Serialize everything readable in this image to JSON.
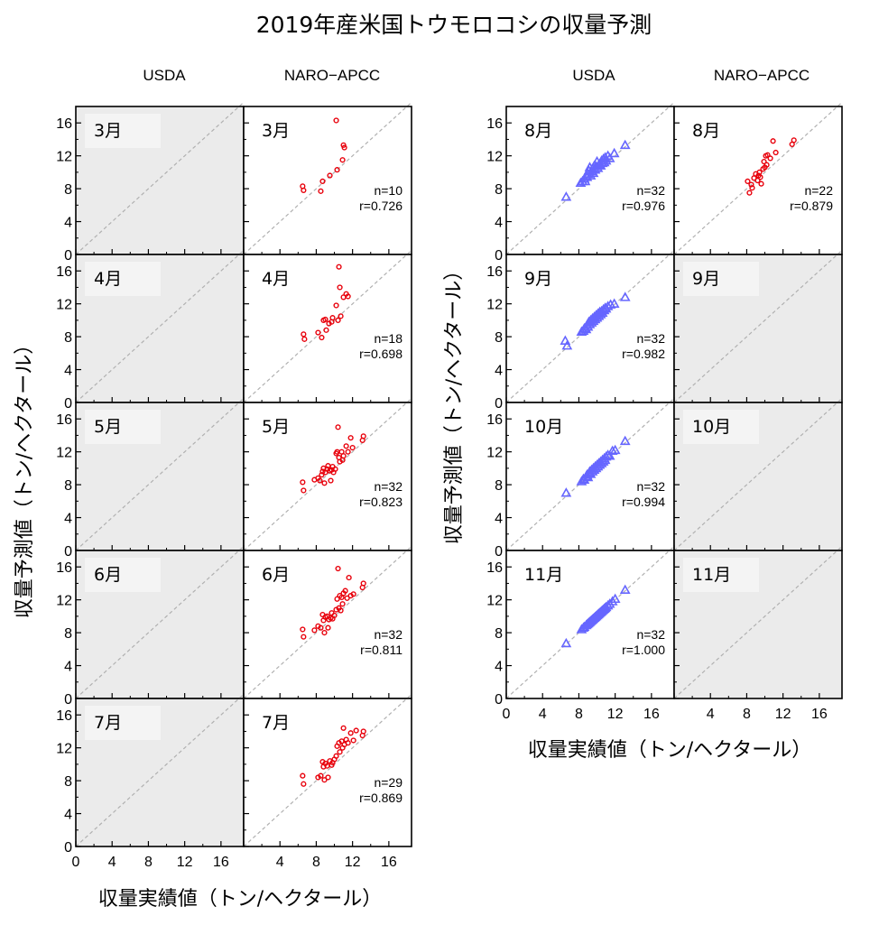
{
  "title": "2019年産米国トウモロコシの収量予測",
  "xlabel": "収量実績値（トン/ヘクタール）",
  "ylabel": "収量予測値（トン/ヘクタール）",
  "columns": [
    "USDA",
    "NARO−APCC",
    "USDA",
    "NARO−APCC"
  ],
  "colors": {
    "usda": "#6666ff",
    "naro": "#e8000b",
    "empty_bg": "#ebebeb",
    "label_box": "#f4f4f4",
    "diagonal": "#b0b0b0"
  },
  "chart_data": {
    "type": "scatter",
    "xlim": [
      0,
      18.5
    ],
    "ylim": [
      0,
      18
    ],
    "ticks": [
      0,
      4,
      8,
      12,
      16
    ],
    "panels": [
      {
        "month": "3月",
        "source": "USDA",
        "empty": true
      },
      {
        "month": "3月",
        "source": "NARO-APCC",
        "marker": "circle",
        "n": "n=10",
        "r": "r=0.726",
        "points": [
          [
            6.5,
            8.3
          ],
          [
            6.6,
            7.8
          ],
          [
            8.5,
            7.7
          ],
          [
            8.7,
            8.9
          ],
          [
            9.5,
            9.6
          ],
          [
            10.2,
            16.3
          ],
          [
            10.3,
            10.3
          ],
          [
            10.9,
            11.5
          ],
          [
            11.0,
            13.3
          ],
          [
            11.1,
            13.0
          ]
        ]
      },
      {
        "month": "4月",
        "source": "USDA",
        "empty": true
      },
      {
        "month": "4月",
        "source": "NARO-APCC",
        "marker": "circle",
        "n": "n=18",
        "r": "r=0.698",
        "points": [
          [
            6.6,
            8.3
          ],
          [
            6.7,
            7.7
          ],
          [
            8.2,
            8.5
          ],
          [
            8.6,
            7.9
          ],
          [
            8.8,
            10.0
          ],
          [
            9.0,
            10.1
          ],
          [
            9.1,
            8.8
          ],
          [
            9.4,
            9.6
          ],
          [
            9.7,
            9.8
          ],
          [
            9.8,
            10.3
          ],
          [
            10.2,
            11.8
          ],
          [
            10.4,
            10.0
          ],
          [
            10.5,
            16.5
          ],
          [
            10.6,
            14.0
          ],
          [
            10.7,
            10.5
          ],
          [
            11.0,
            12.8
          ],
          [
            11.3,
            13.2
          ],
          [
            11.5,
            12.9
          ]
        ]
      },
      {
        "month": "5月",
        "source": "USDA",
        "empty": true
      },
      {
        "month": "5月",
        "source": "NARO-APCC",
        "marker": "circle",
        "n": "n=32",
        "r": "r=0.823",
        "points": [
          [
            6.5,
            8.3
          ],
          [
            6.6,
            7.3
          ],
          [
            7.8,
            8.6
          ],
          [
            8.2,
            8.8
          ],
          [
            8.4,
            8.5
          ],
          [
            8.6,
            9.2
          ],
          [
            8.7,
            9.6
          ],
          [
            8.8,
            10.0
          ],
          [
            8.9,
            8.2
          ],
          [
            9.0,
            9.5
          ],
          [
            9.2,
            9.9
          ],
          [
            9.3,
            10.3
          ],
          [
            9.5,
            9.7
          ],
          [
            9.6,
            8.5
          ],
          [
            9.7,
            9.8
          ],
          [
            9.8,
            10.2
          ],
          [
            9.9,
            9.5
          ],
          [
            10.1,
            9.9
          ],
          [
            10.2,
            11.8
          ],
          [
            10.3,
            12.0
          ],
          [
            10.4,
            15.0
          ],
          [
            10.5,
            11.3
          ],
          [
            10.6,
            10.8
          ],
          [
            10.8,
            12.0
          ],
          [
            10.9,
            11.0
          ],
          [
            11.0,
            11.5
          ],
          [
            11.3,
            12.7
          ],
          [
            11.5,
            12.0
          ],
          [
            11.8,
            13.7
          ],
          [
            12.0,
            12.5
          ],
          [
            13.1,
            13.4
          ],
          [
            13.2,
            13.9
          ]
        ]
      },
      {
        "month": "6月",
        "source": "USDA",
        "empty": true
      },
      {
        "month": "6月",
        "source": "NARO-APCC",
        "marker": "circle",
        "n": "n=32",
        "r": "r=0.811",
        "points": [
          [
            6.5,
            8.4
          ],
          [
            6.6,
            7.5
          ],
          [
            7.8,
            8.3
          ],
          [
            8.2,
            8.8
          ],
          [
            8.5,
            8.6
          ],
          [
            8.7,
            10.2
          ],
          [
            8.8,
            9.5
          ],
          [
            8.9,
            8.0
          ],
          [
            9.0,
            9.9
          ],
          [
            9.2,
            10.0
          ],
          [
            9.3,
            8.6
          ],
          [
            9.4,
            9.6
          ],
          [
            9.6,
            9.8
          ],
          [
            9.7,
            10.4
          ],
          [
            9.8,
            9.7
          ],
          [
            10.0,
            10.1
          ],
          [
            10.2,
            10.8
          ],
          [
            10.3,
            12.1
          ],
          [
            10.4,
            15.8
          ],
          [
            10.5,
            11.0
          ],
          [
            10.6,
            12.5
          ],
          [
            10.7,
            10.7
          ],
          [
            10.8,
            12.3
          ],
          [
            10.9,
            11.5
          ],
          [
            11.0,
            12.8
          ],
          [
            11.2,
            13.1
          ],
          [
            11.4,
            12.2
          ],
          [
            11.6,
            14.7
          ],
          [
            11.8,
            12.5
          ],
          [
            12.1,
            12.7
          ],
          [
            13.1,
            13.5
          ],
          [
            13.2,
            14.0
          ]
        ]
      },
      {
        "month": "7月",
        "source": "USDA",
        "empty": true
      },
      {
        "month": "7月",
        "source": "NARO-APCC",
        "marker": "circle",
        "n": "n=29",
        "r": "r=0.869",
        "points": [
          [
            6.5,
            8.6
          ],
          [
            6.6,
            7.6
          ],
          [
            8.2,
            8.4
          ],
          [
            8.5,
            8.6
          ],
          [
            8.7,
            10.3
          ],
          [
            8.8,
            9.7
          ],
          [
            8.9,
            8.1
          ],
          [
            9.0,
            10.1
          ],
          [
            9.2,
            9.8
          ],
          [
            9.3,
            8.4
          ],
          [
            9.5,
            10.4
          ],
          [
            9.7,
            9.9
          ],
          [
            9.8,
            10.2
          ],
          [
            10.0,
            10.6
          ],
          [
            10.2,
            11.0
          ],
          [
            10.3,
            12.2
          ],
          [
            10.5,
            12.6
          ],
          [
            10.6,
            11.5
          ],
          [
            10.8,
            12.8
          ],
          [
            10.9,
            12.0
          ],
          [
            11.0,
            14.4
          ],
          [
            11.1,
            12.4
          ],
          [
            11.3,
            13.0
          ],
          [
            11.5,
            12.6
          ],
          [
            11.8,
            13.8
          ],
          [
            12.1,
            12.9
          ],
          [
            12.4,
            14.1
          ],
          [
            13.1,
            13.5
          ],
          [
            13.2,
            14.0
          ]
        ]
      },
      {
        "month": "8月",
        "source": "USDA",
        "marker": "triangle",
        "n": "n=32",
        "r": "r=0.976",
        "points": [
          [
            6.6,
            7.0
          ],
          [
            8.2,
            8.7
          ],
          [
            8.4,
            8.9
          ],
          [
            8.6,
            9.2
          ],
          [
            8.7,
            8.9
          ],
          [
            8.8,
            9.5
          ],
          [
            8.9,
            9.4
          ],
          [
            9.0,
            9.8
          ],
          [
            9.1,
            10.2
          ],
          [
            9.2,
            10.6
          ],
          [
            9.3,
            9.6
          ],
          [
            9.4,
            10.1
          ],
          [
            9.5,
            10.4
          ],
          [
            9.6,
            9.9
          ],
          [
            9.7,
            10.8
          ],
          [
            9.8,
            10.3
          ],
          [
            9.9,
            10.7
          ],
          [
            10.0,
            11.3
          ],
          [
            10.1,
            10.5
          ],
          [
            10.2,
            10.9
          ],
          [
            10.3,
            11.0
          ],
          [
            10.4,
            10.8
          ],
          [
            10.5,
            11.4
          ],
          [
            10.6,
            11.1
          ],
          [
            10.7,
            11.6
          ],
          [
            10.8,
            11.2
          ],
          [
            10.9,
            11.8
          ],
          [
            11.0,
            11.4
          ],
          [
            11.2,
            12.0
          ],
          [
            11.4,
            11.7
          ],
          [
            11.9,
            12.3
          ],
          [
            13.1,
            13.3
          ]
        ]
      },
      {
        "month": "8月",
        "source": "NARO-APCC",
        "marker": "circle",
        "n": "n=22",
        "r": "r=0.879",
        "points": [
          [
            8.1,
            8.9
          ],
          [
            8.3,
            7.5
          ],
          [
            8.5,
            8.5
          ],
          [
            8.6,
            8.1
          ],
          [
            8.8,
            9.3
          ],
          [
            9.0,
            9.8
          ],
          [
            9.2,
            9.0
          ],
          [
            9.3,
            9.6
          ],
          [
            9.4,
            10.0
          ],
          [
            9.5,
            9.4
          ],
          [
            9.6,
            8.6
          ],
          [
            9.8,
            10.4
          ],
          [
            9.9,
            11.3
          ],
          [
            10.0,
            10.6
          ],
          [
            10.1,
            12.0
          ],
          [
            10.2,
            10.9
          ],
          [
            10.3,
            12.1
          ],
          [
            10.6,
            11.7
          ],
          [
            10.9,
            13.8
          ],
          [
            11.2,
            12.4
          ],
          [
            13.0,
            13.4
          ],
          [
            13.2,
            13.9
          ]
        ]
      },
      {
        "month": "9月",
        "source": "USDA",
        "marker": "triangle",
        "n": "n=32",
        "r": "r=0.982",
        "points": [
          [
            6.5,
            7.5
          ],
          [
            6.7,
            6.9
          ],
          [
            8.3,
            8.6
          ],
          [
            8.5,
            8.7
          ],
          [
            8.6,
            9.0
          ],
          [
            8.8,
            8.9
          ],
          [
            8.9,
            9.4
          ],
          [
            9.0,
            9.2
          ],
          [
            9.1,
            9.8
          ],
          [
            9.2,
            9.5
          ],
          [
            9.3,
            10.0
          ],
          [
            9.4,
            9.7
          ],
          [
            9.5,
            10.2
          ],
          [
            9.6,
            9.9
          ],
          [
            9.7,
            10.4
          ],
          [
            9.8,
            10.1
          ],
          [
            9.9,
            10.6
          ],
          [
            10.0,
            10.3
          ],
          [
            10.1,
            10.8
          ],
          [
            10.2,
            10.5
          ],
          [
            10.3,
            11.0
          ],
          [
            10.4,
            10.7
          ],
          [
            10.5,
            11.1
          ],
          [
            10.6,
            10.9
          ],
          [
            10.7,
            11.3
          ],
          [
            10.8,
            11.2
          ],
          [
            10.9,
            11.5
          ],
          [
            11.0,
            11.4
          ],
          [
            11.2,
            11.7
          ],
          [
            11.5,
            11.9
          ],
          [
            11.9,
            12.0
          ],
          [
            13.1,
            12.8
          ]
        ]
      },
      {
        "month": "9月",
        "source": "NARO-APCC",
        "empty": true
      },
      {
        "month": "10月",
        "source": "USDA",
        "marker": "triangle",
        "n": "n=32",
        "r": "r=0.994",
        "points": [
          [
            6.6,
            7.0
          ],
          [
            8.3,
            8.4
          ],
          [
            8.5,
            8.7
          ],
          [
            8.6,
            8.6
          ],
          [
            8.8,
            9.0
          ],
          [
            8.9,
            9.2
          ],
          [
            9.0,
            8.9
          ],
          [
            9.1,
            9.4
          ],
          [
            9.2,
            9.6
          ],
          [
            9.3,
            9.3
          ],
          [
            9.4,
            9.8
          ],
          [
            9.5,
            9.6
          ],
          [
            9.6,
            10.0
          ],
          [
            9.7,
            9.8
          ],
          [
            9.8,
            10.2
          ],
          [
            9.9,
            10.0
          ],
          [
            10.0,
            10.4
          ],
          [
            10.1,
            10.2
          ],
          [
            10.2,
            10.6
          ],
          [
            10.3,
            10.4
          ],
          [
            10.4,
            10.8
          ],
          [
            10.5,
            10.6
          ],
          [
            10.6,
            11.0
          ],
          [
            10.7,
            10.8
          ],
          [
            10.8,
            11.2
          ],
          [
            10.9,
            11.0
          ],
          [
            11.0,
            11.4
          ],
          [
            11.2,
            11.6
          ],
          [
            11.4,
            11.5
          ],
          [
            11.7,
            12.1
          ],
          [
            12.0,
            12.2
          ],
          [
            13.1,
            13.3
          ]
        ]
      },
      {
        "month": "10月",
        "source": "NARO-APCC",
        "empty": true
      },
      {
        "month": "11月",
        "source": "USDA",
        "marker": "triangle",
        "n": "n=32",
        "r": "r=1.000",
        "points": [
          [
            6.6,
            6.7
          ],
          [
            8.3,
            8.4
          ],
          [
            8.5,
            8.6
          ],
          [
            8.6,
            8.7
          ],
          [
            8.8,
            8.9
          ],
          [
            8.9,
            9.0
          ],
          [
            9.0,
            9.1
          ],
          [
            9.1,
            9.2
          ],
          [
            9.2,
            9.3
          ],
          [
            9.3,
            9.4
          ],
          [
            9.4,
            9.5
          ],
          [
            9.5,
            9.6
          ],
          [
            9.6,
            9.7
          ],
          [
            9.7,
            9.8
          ],
          [
            9.8,
            9.9
          ],
          [
            9.9,
            10.0
          ],
          [
            10.0,
            10.1
          ],
          [
            10.1,
            10.2
          ],
          [
            10.2,
            10.3
          ],
          [
            10.3,
            10.4
          ],
          [
            10.4,
            10.5
          ],
          [
            10.5,
            10.6
          ],
          [
            10.6,
            10.7
          ],
          [
            10.7,
            10.8
          ],
          [
            10.8,
            10.9
          ],
          [
            10.9,
            11.0
          ],
          [
            11.0,
            11.1
          ],
          [
            11.2,
            11.3
          ],
          [
            11.4,
            11.5
          ],
          [
            11.7,
            11.8
          ],
          [
            12.0,
            12.1
          ],
          [
            13.1,
            13.2
          ]
        ]
      },
      {
        "month": "11月",
        "source": "NARO-APCC",
        "empty": true
      }
    ]
  }
}
